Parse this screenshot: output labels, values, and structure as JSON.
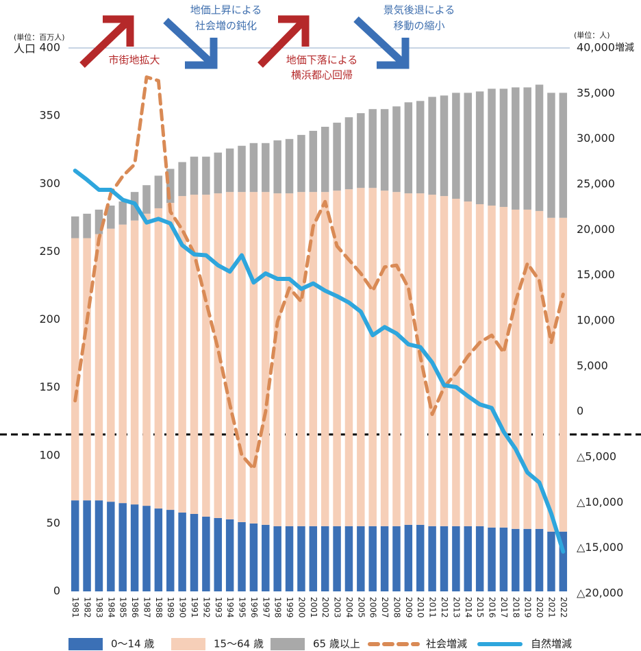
{
  "chart_data": {
    "type": "bar_line",
    "y_unit": "(単位：百万人)",
    "y_label": "人口",
    "y2_unit": "(単位：人)",
    "y2_label": "増減",
    "annotations": [
      {
        "lines": [
          "市街地拡大"
        ],
        "color": "#b5292a"
      },
      {
        "lines": [
          "地価上昇による",
          "社会増の鈍化"
        ],
        "color": "#3f6fae"
      },
      {
        "lines": [
          "地価下落による",
          "横浜都心回帰"
        ],
        "color": "#b5292a"
      },
      {
        "lines": [
          "景気後退による",
          "移動の縮小"
        ],
        "color": "#3f6fae"
      }
    ],
    "categories": [
      "1981",
      "1982",
      "1983",
      "1984",
      "1985",
      "1986",
      "1987",
      "1988",
      "1989",
      "1990",
      "1991",
      "1992",
      "1993",
      "1994",
      "1995",
      "1996",
      "1997",
      "1998",
      "1999",
      "2000",
      "2001",
      "2002",
      "2003",
      "2004",
      "2005",
      "2006",
      "2007",
      "2008",
      "2009",
      "2010",
      "2011",
      "2012",
      "2013",
      "2014",
      "2015",
      "2016",
      "2017",
      "2018",
      "2019",
      "2020",
      "2021",
      "2022"
    ],
    "series": [
      {
        "name": "0～14 歳",
        "color": "#3b70b6",
        "kind": "bar",
        "values": [
          67,
          67,
          67,
          66,
          65,
          64,
          63,
          61,
          60,
          58,
          57,
          55,
          54,
          53,
          51,
          50,
          49,
          48,
          48,
          48,
          48,
          48,
          48,
          48,
          48,
          48,
          48,
          48,
          49,
          49,
          48,
          48,
          48,
          48,
          48,
          47,
          47,
          46,
          46,
          46,
          44,
          44
        ]
      },
      {
        "name": "15～64 歳",
        "color": "#f6cfb8",
        "kind": "bar",
        "values": [
          193,
          193,
          196,
          201,
          205,
          209,
          215,
          221,
          226,
          233,
          235,
          237,
          239,
          241,
          243,
          244,
          245,
          245,
          245,
          246,
          246,
          246,
          247,
          248,
          249,
          249,
          247,
          246,
          244,
          244,
          244,
          243,
          241,
          239,
          237,
          237,
          236,
          235,
          235,
          234,
          231,
          231
        ]
      },
      {
        "name": "65 歳以上",
        "color": "#a9a9a9",
        "kind": "bar",
        "values": [
          16,
          18,
          18,
          17,
          17,
          21,
          21,
          24,
          25,
          25,
          28,
          28,
          30,
          32,
          34,
          36,
          36,
          39,
          40,
          42,
          45,
          48,
          50,
          53,
          55,
          58,
          60,
          63,
          67,
          68,
          72,
          74,
          78,
          80,
          83,
          86,
          87,
          90,
          90,
          93,
          92,
          92
        ]
      },
      {
        "name": "社会増減",
        "color": "#d98a55",
        "kind": "line",
        "dash": true,
        "axis": "y2",
        "values": [
          1200,
          10000,
          19000,
          24000,
          25900,
          27200,
          36800,
          36400,
          22000,
          20000,
          17400,
          12100,
          6900,
          800,
          -4800,
          -6300,
          0,
          9900,
          13600,
          12100,
          20400,
          23100,
          18200,
          16700,
          15200,
          13300,
          15900,
          16100,
          13600,
          6100,
          -300,
          2700,
          4200,
          6100,
          7600,
          8400,
          6500,
          12100,
          16300,
          14400,
          7600,
          12900
        ]
      },
      {
        "name": "自然増減",
        "color": "#2ea6dd",
        "kind": "line",
        "dash": false,
        "axis": "y2",
        "values": [
          26500,
          25500,
          24400,
          24400,
          23300,
          22900,
          20800,
          21200,
          20700,
          18300,
          17300,
          17200,
          16100,
          15400,
          17200,
          14200,
          15200,
          14600,
          14600,
          13500,
          14100,
          13300,
          12700,
          12000,
          11000,
          8400,
          9300,
          8600,
          7400,
          7100,
          5400,
          2900,
          2700,
          1700,
          800,
          400,
          -2200,
          -4100,
          -6700,
          -7800,
          -11200,
          -15400
        ]
      }
    ],
    "ylim": [
      0,
      400
    ],
    "yticks": [
      0,
      50,
      100,
      150,
      200,
      250,
      300,
      350,
      400
    ],
    "y2lim": [
      -20000,
      40000
    ],
    "y2ticks": [
      {
        "value": 40000,
        "label": "40,000"
      },
      {
        "value": 35000,
        "label": "35,000"
      },
      {
        "value": 30000,
        "label": "30,000"
      },
      {
        "value": 25000,
        "label": "25,000"
      },
      {
        "value": 20000,
        "label": "20,000"
      },
      {
        "value": 15000,
        "label": "15,000"
      },
      {
        "value": 10000,
        "label": "10,000"
      },
      {
        "value": 5000,
        "label": "5,000"
      },
      0,
      {
        "value": -5000,
        "label": "△5,000"
      },
      {
        "value": -10000,
        "label": "△10,000"
      },
      {
        "value": -15000,
        "label": "△15,000"
      },
      {
        "value": -20000,
        "label": "△20,000"
      }
    ],
    "grid": false
  }
}
